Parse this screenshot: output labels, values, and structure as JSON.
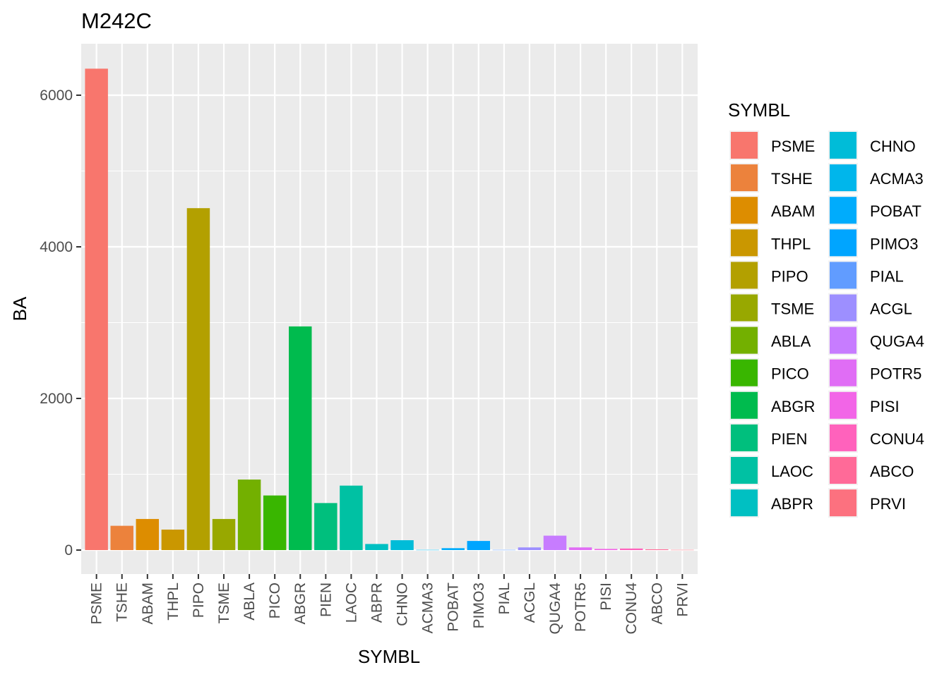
{
  "chart_data": {
    "type": "bar",
    "title": "M242C",
    "xlabel": "SYMBL",
    "ylabel": "BA",
    "categories": [
      "PSME",
      "TSHE",
      "ABAM",
      "THPL",
      "PIPO",
      "TSME",
      "ABLA",
      "PICO",
      "ABGR",
      "PIEN",
      "LAOC",
      "ABPR",
      "CHNO",
      "ACMA3",
      "POBAT",
      "PIMO3",
      "PIAL",
      "ACGL",
      "QUGA4",
      "POTR5",
      "PISI",
      "CONU4",
      "ABCO",
      "PRVI"
    ],
    "values": [
      6350,
      320,
      410,
      270,
      4510,
      410,
      930,
      720,
      2950,
      620,
      850,
      80,
      130,
      3,
      25,
      120,
      3,
      35,
      190,
      35,
      15,
      20,
      10,
      3
    ],
    "colors": [
      "#F8766D",
      "#EC823C",
      "#DD8D00",
      "#CA9700",
      "#B3A000",
      "#98A800",
      "#73B000",
      "#39B600",
      "#00BB4E",
      "#00BF7D",
      "#00C1A3",
      "#00C0C2",
      "#00BCD8",
      "#00B6EB",
      "#00ACFC",
      "#00A5FF",
      "#619CFF",
      "#9D8FFF",
      "#C77CFF",
      "#E06DF5",
      "#F265E7",
      "#FF62BC",
      "#FF6A98",
      "#FC717F"
    ],
    "ylim": [
      0,
      6500
    ],
    "yticks": [
      0,
      2000,
      4000,
      6000
    ],
    "ytick_labels": [
      "0",
      "2000",
      "4000",
      "6000"
    ],
    "grid": true,
    "legend": {
      "title": "SYMBL",
      "placement": "right",
      "columns": 2
    }
  }
}
